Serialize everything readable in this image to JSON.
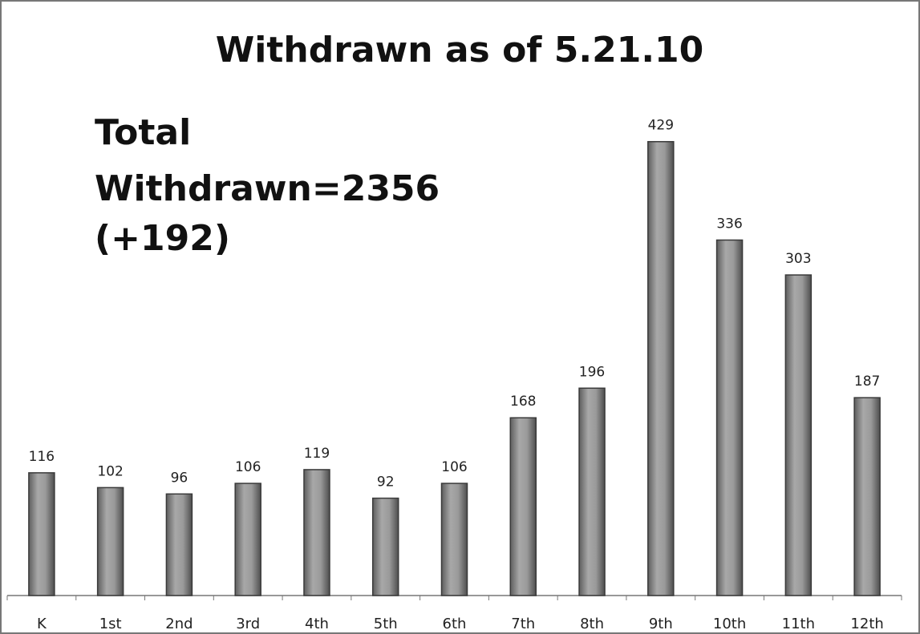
{
  "chart_data": {
    "type": "bar",
    "title": "Withdrawn as of 5.21.10",
    "annotation": [
      "Total",
      "Withdrawn=2356",
      "(+192)"
    ],
    "categories": [
      "K",
      "1st",
      "2nd",
      "3rd",
      "4th",
      "5th",
      "6th",
      "7th",
      "8th",
      "9th",
      "10th",
      "11th",
      "12th"
    ],
    "values": [
      116,
      102,
      96,
      106,
      119,
      92,
      106,
      168,
      196,
      429,
      336,
      303,
      187
    ],
    "color": "#8a8a8a",
    "ylim": [
      0,
      450
    ]
  }
}
